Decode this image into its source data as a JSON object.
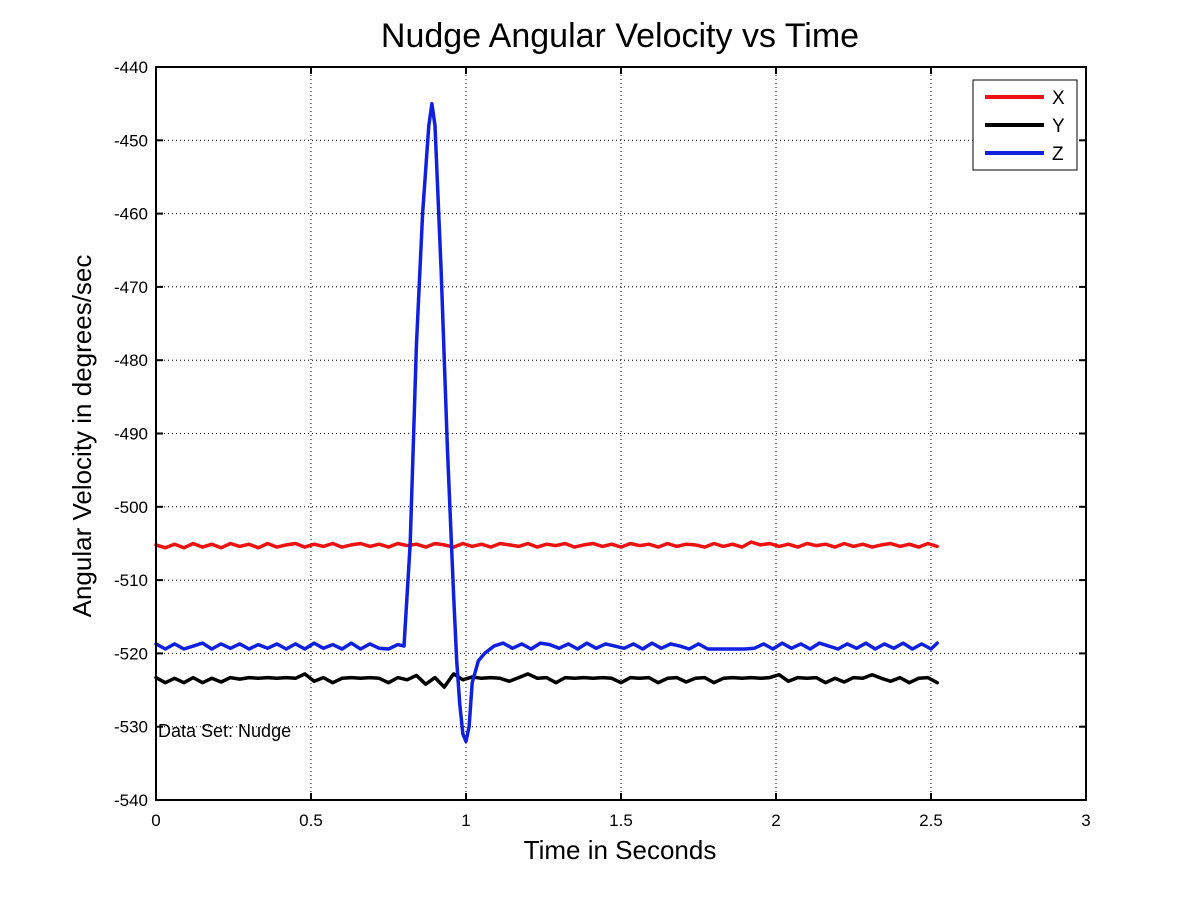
{
  "chart_data": {
    "type": "line",
    "title": "Nudge Angular Velocity vs Time",
    "xlabel": "Time in Seconds",
    "ylabel": "Angular Velocity in degrees/sec",
    "xlim": [
      0,
      3
    ],
    "ylim": [
      -540,
      -440
    ],
    "xticks": [
      0,
      0.5,
      1,
      1.5,
      2,
      2.5,
      3
    ],
    "xtick_labels": [
      "0",
      "0.5",
      "1",
      "1.5",
      "2",
      "2.5",
      "3"
    ],
    "yticks": [
      -440,
      -450,
      -460,
      -470,
      -480,
      -490,
      -500,
      -510,
      -520,
      -530,
      -540
    ],
    "ytick_labels": [
      "-440",
      "-450",
      "-460",
      "-470",
      "-480",
      "-490",
      "-500",
      "-510",
      "-520",
      "-530",
      "-540"
    ],
    "grid": true,
    "legend_position": "top-right",
    "annotation": "Data Set: Nudge",
    "series": [
      {
        "name": "X",
        "color": "#ee1111",
        "x": [
          0,
          0.03,
          0.06,
          0.09,
          0.12,
          0.15,
          0.18,
          0.21,
          0.24,
          0.27,
          0.3,
          0.33,
          0.36,
          0.39,
          0.42,
          0.45,
          0.48,
          0.51,
          0.54,
          0.57,
          0.6,
          0.63,
          0.66,
          0.69,
          0.72,
          0.75,
          0.78,
          0.81,
          0.84,
          0.87,
          0.9,
          0.93,
          0.96,
          0.99,
          1.02,
          1.05,
          1.08,
          1.11,
          1.14,
          1.17,
          1.2,
          1.23,
          1.26,
          1.29,
          1.32,
          1.35,
          1.38,
          1.41,
          1.44,
          1.47,
          1.5,
          1.53,
          1.56,
          1.59,
          1.62,
          1.65,
          1.68,
          1.71,
          1.74,
          1.77,
          1.8,
          1.83,
          1.86,
          1.89,
          1.92,
          1.95,
          1.98,
          2.01,
          2.04,
          2.07,
          2.1,
          2.13,
          2.16,
          2.19,
          2.22,
          2.25,
          2.28,
          2.31,
          2.34,
          2.37,
          2.4,
          2.43,
          2.46,
          2.49,
          2.52
        ],
        "y": [
          -505.2,
          -505.6,
          -505.1,
          -505.6,
          -505.0,
          -505.5,
          -505.1,
          -505.6,
          -505.0,
          -505.4,
          -505.1,
          -505.6,
          -505.0,
          -505.5,
          -505.2,
          -505.0,
          -505.5,
          -505.1,
          -505.4,
          -505.0,
          -505.5,
          -505.2,
          -505.0,
          -505.4,
          -505.1,
          -505.5,
          -505.0,
          -505.3,
          -505.1,
          -505.5,
          -505.0,
          -505.2,
          -505.5,
          -505.0,
          -505.4,
          -505.1,
          -505.5,
          -505.0,
          -505.2,
          -505.4,
          -505.0,
          -505.5,
          -505.1,
          -505.3,
          -505.0,
          -505.5,
          -505.2,
          -505.0,
          -505.4,
          -505.1,
          -505.5,
          -505.0,
          -505.3,
          -505.1,
          -505.5,
          -505.0,
          -505.4,
          -505.1,
          -505.2,
          -505.5,
          -505.0,
          -505.4,
          -505.1,
          -505.5,
          -504.8,
          -505.2,
          -505.0,
          -505.4,
          -505.1,
          -505.5,
          -505.0,
          -505.3,
          -505.1,
          -505.5,
          -505.0,
          -505.4,
          -505.1,
          -505.5,
          -505.2,
          -505.0,
          -505.4,
          -505.1,
          -505.5,
          -505.0,
          -505.4
        ]
      },
      {
        "name": "Y",
        "color": "#000000",
        "x": [
          0,
          0.03,
          0.06,
          0.09,
          0.12,
          0.15,
          0.18,
          0.21,
          0.24,
          0.27,
          0.3,
          0.33,
          0.36,
          0.39,
          0.42,
          0.45,
          0.48,
          0.51,
          0.54,
          0.57,
          0.6,
          0.63,
          0.66,
          0.69,
          0.72,
          0.75,
          0.78,
          0.81,
          0.84,
          0.87,
          0.9,
          0.93,
          0.96,
          0.99,
          1.02,
          1.05,
          1.08,
          1.11,
          1.14,
          1.17,
          1.2,
          1.23,
          1.26,
          1.29,
          1.32,
          1.35,
          1.38,
          1.41,
          1.44,
          1.47,
          1.5,
          1.53,
          1.56,
          1.59,
          1.62,
          1.65,
          1.68,
          1.71,
          1.74,
          1.77,
          1.8,
          1.83,
          1.86,
          1.89,
          1.92,
          1.95,
          1.98,
          2.01,
          2.04,
          2.07,
          2.1,
          2.13,
          2.16,
          2.19,
          2.22,
          2.25,
          2.28,
          2.31,
          2.34,
          2.37,
          2.4,
          2.43,
          2.46,
          2.49,
          2.52
        ],
        "y": [
          -523.3,
          -524.0,
          -523.4,
          -524.0,
          -523.3,
          -524.0,
          -523.4,
          -523.9,
          -523.3,
          -523.5,
          -523.3,
          -523.4,
          -523.3,
          -523.4,
          -523.3,
          -523.4,
          -522.8,
          -523.8,
          -523.3,
          -524.0,
          -523.4,
          -523.3,
          -523.4,
          -523.3,
          -523.4,
          -524.0,
          -523.3,
          -523.6,
          -523.0,
          -524.2,
          -523.3,
          -524.6,
          -522.8,
          -523.6,
          -523.2,
          -523.4,
          -523.3,
          -523.4,
          -523.8,
          -523.3,
          -522.8,
          -523.4,
          -523.3,
          -524.0,
          -523.3,
          -523.4,
          -523.3,
          -523.4,
          -523.3,
          -523.4,
          -524.0,
          -523.3,
          -523.4,
          -523.3,
          -524.0,
          -523.4,
          -523.3,
          -523.9,
          -523.4,
          -523.3,
          -524.0,
          -523.4,
          -523.3,
          -523.4,
          -523.3,
          -523.4,
          -523.3,
          -522.9,
          -523.8,
          -523.3,
          -523.4,
          -523.3,
          -524.0,
          -523.4,
          -523.9,
          -523.3,
          -523.4,
          -522.9,
          -523.4,
          -523.8,
          -523.3,
          -524.0,
          -523.4,
          -523.3,
          -524.0
        ]
      },
      {
        "name": "Z",
        "color": "#1020e0",
        "x": [
          0,
          0.03,
          0.06,
          0.09,
          0.12,
          0.15,
          0.18,
          0.21,
          0.24,
          0.27,
          0.3,
          0.33,
          0.36,
          0.39,
          0.42,
          0.45,
          0.48,
          0.51,
          0.54,
          0.57,
          0.6,
          0.63,
          0.66,
          0.69,
          0.72,
          0.75,
          0.78,
          0.8,
          0.82,
          0.84,
          0.86,
          0.88,
          0.89,
          0.9,
          0.92,
          0.94,
          0.96,
          0.97,
          0.98,
          0.99,
          1.0,
          1.01,
          1.02,
          1.04,
          1.06,
          1.09,
          1.12,
          1.15,
          1.18,
          1.21,
          1.24,
          1.27,
          1.3,
          1.33,
          1.36,
          1.39,
          1.42,
          1.45,
          1.48,
          1.51,
          1.54,
          1.57,
          1.6,
          1.63,
          1.66,
          1.69,
          1.72,
          1.75,
          1.78,
          1.81,
          1.84,
          1.87,
          1.9,
          1.93,
          1.96,
          1.99,
          2.02,
          2.05,
          2.08,
          2.11,
          2.14,
          2.17,
          2.2,
          2.23,
          2.26,
          2.29,
          2.32,
          2.35,
          2.38,
          2.41,
          2.44,
          2.47,
          2.5,
          2.52
        ],
        "y": [
          -518.7,
          -519.4,
          -518.7,
          -519.4,
          -519.0,
          -518.6,
          -519.4,
          -518.7,
          -519.3,
          -518.7,
          -519.4,
          -518.8,
          -519.3,
          -518.7,
          -519.4,
          -518.7,
          -519.4,
          -518.6,
          -519.3,
          -518.8,
          -519.4,
          -518.6,
          -519.4,
          -518.7,
          -519.3,
          -519.4,
          -518.8,
          -519.0,
          -505.0,
          -478.0,
          -460.0,
          -448.0,
          -445.0,
          -448.0,
          -468.0,
          -492.0,
          -512.0,
          -521.0,
          -527.0,
          -531.0,
          -532.0,
          -530.0,
          -524.0,
          -521.0,
          -520.0,
          -519.0,
          -518.6,
          -519.3,
          -518.7,
          -519.4,
          -518.6,
          -518.8,
          -519.3,
          -518.7,
          -519.4,
          -518.6,
          -519.3,
          -518.7,
          -519.0,
          -519.3,
          -518.7,
          -519.4,
          -518.6,
          -519.3,
          -518.7,
          -519.0,
          -519.4,
          -518.7,
          -519.4,
          -519.4,
          -519.4,
          -519.4,
          -519.4,
          -519.3,
          -518.7,
          -519.4,
          -518.6,
          -519.3,
          -518.7,
          -519.4,
          -518.6,
          -519.0,
          -519.4,
          -518.7,
          -519.3,
          -518.6,
          -519.4,
          -518.7,
          -519.3,
          -518.6,
          -519.4,
          -518.7,
          -519.4,
          -518.6
        ]
      }
    ]
  }
}
